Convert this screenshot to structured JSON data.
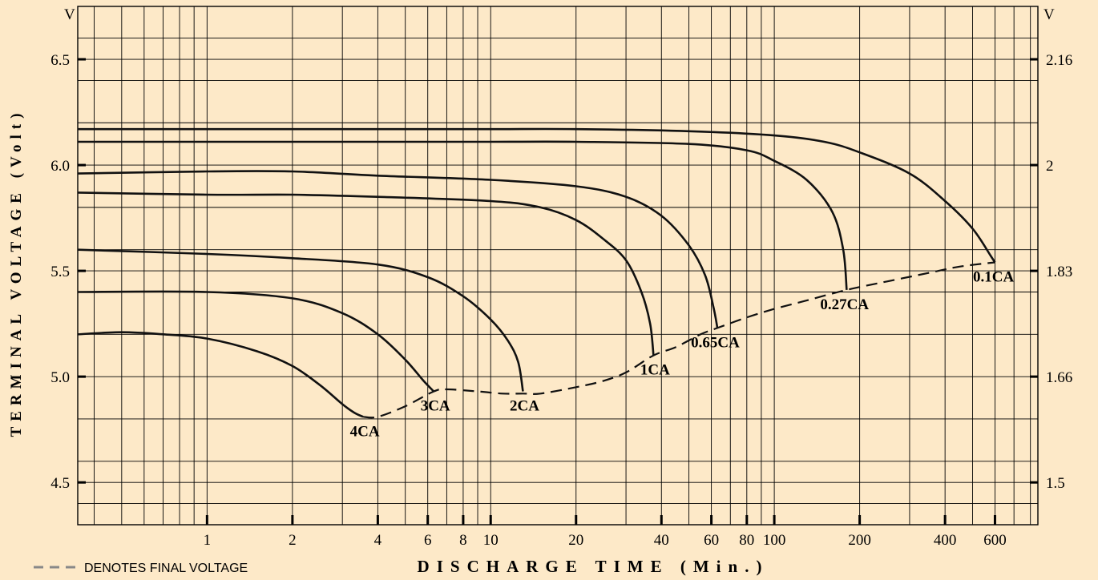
{
  "chart_data": {
    "type": "line",
    "title": "",
    "xlabel": "DISCHARGE TIME (Min.)",
    "ylabel": "TERMINAL VOLTAGE (Volt)",
    "x_scale": "log",
    "xlim": [
      0.35,
      850
    ],
    "ylim": [
      4.3,
      6.75
    ],
    "y_unit_left": "V",
    "y_unit_right": "V",
    "x_ticks": [
      1,
      2,
      4,
      6,
      8,
      10,
      20,
      40,
      60,
      80,
      100,
      200,
      400,
      600
    ],
    "x_tick_labels": [
      "1",
      "2",
      "4",
      "6",
      "8",
      "10",
      "20",
      "40",
      "60",
      "80",
      "100",
      "200",
      "400",
      "600"
    ],
    "y_ticks_left": [
      4.5,
      5.0,
      5.5,
      6.0,
      6.5
    ],
    "y_tick_labels_left": [
      "4.5",
      "5.0",
      "5.5",
      "6.0",
      "6.5"
    ],
    "y_ticks_right": [
      4.5,
      5.0,
      5.5,
      6.0,
      6.5
    ],
    "y_tick_labels_right": [
      "1.5",
      "1.66",
      "1.83",
      "2",
      "2.16"
    ],
    "grid": true,
    "series": [
      {
        "name": "4CA",
        "x": [
          0.35,
          0.5,
          0.7,
          1.0,
          1.5,
          2.0,
          2.5,
          3.0,
          3.3,
          3.55
        ],
        "y": [
          5.2,
          5.21,
          5.2,
          5.18,
          5.12,
          5.05,
          4.96,
          4.87,
          4.83,
          4.81
        ]
      },
      {
        "name": "3CA",
        "x": [
          0.35,
          1.0,
          2.0,
          3.0,
          4.0,
          5.0,
          5.8,
          6.3
        ],
        "y": [
          5.4,
          5.4,
          5.37,
          5.3,
          5.2,
          5.08,
          4.98,
          4.93
        ]
      },
      {
        "name": "2CA",
        "x": [
          0.35,
          1.0,
          2.0,
          4.0,
          6.0,
          8.0,
          10.0,
          11.5,
          12.5,
          13.0
        ],
        "y": [
          5.6,
          5.58,
          5.56,
          5.53,
          5.47,
          5.38,
          5.27,
          5.17,
          5.07,
          4.93
        ]
      },
      {
        "name": "1CA",
        "x": [
          0.35,
          1.0,
          2.0,
          4.0,
          10.0,
          15.0,
          20.0,
          25.0,
          30.0,
          34.0,
          36.5,
          37.5
        ],
        "y": [
          5.87,
          5.86,
          5.86,
          5.85,
          5.83,
          5.8,
          5.74,
          5.65,
          5.55,
          5.4,
          5.25,
          5.1
        ]
      },
      {
        "name": "0.65CA",
        "x": [
          0.35,
          1.0,
          2.0,
          4.0,
          10.0,
          20.0,
          30.0,
          40.0,
          50.0,
          57.0,
          61.0,
          63.0
        ],
        "y": [
          5.96,
          5.97,
          5.97,
          5.95,
          5.93,
          5.9,
          5.85,
          5.76,
          5.62,
          5.48,
          5.33,
          5.23
        ]
      },
      {
        "name": "0.27CA",
        "x": [
          0.35,
          1.0,
          2.0,
          4.0,
          10.0,
          20.0,
          50.0,
          80.0,
          100.0,
          130.0,
          160.0,
          175.0,
          180.0
        ],
        "y": [
          6.11,
          6.11,
          6.11,
          6.11,
          6.11,
          6.11,
          6.1,
          6.07,
          6.02,
          5.93,
          5.78,
          5.6,
          5.41
        ]
      },
      {
        "name": "0.1CA",
        "x": [
          0.35,
          1.0,
          4.0,
          10.0,
          20.0,
          50.0,
          100.0,
          150.0,
          200.0,
          300.0,
          400.0,
          500.0,
          580.0,
          600.0
        ],
        "y": [
          6.17,
          6.17,
          6.17,
          6.17,
          6.17,
          6.16,
          6.14,
          6.11,
          6.06,
          5.96,
          5.83,
          5.7,
          5.57,
          5.54
        ]
      }
    ],
    "final_voltage": {
      "x": [
        3.55,
        4.0,
        5.0,
        6.3,
        7.0,
        9.0,
        11.0,
        13.0,
        15.0,
        20.0,
        25.0,
        30.0,
        37.5,
        45.0,
        55.0,
        63.0,
        80.0,
        100.0,
        130.0,
        180.0,
        250.0,
        350.0,
        450.0,
        600.0
      ],
      "y": [
        4.81,
        4.81,
        4.86,
        4.93,
        4.94,
        4.93,
        4.92,
        4.92,
        4.92,
        4.95,
        4.98,
        5.02,
        5.1,
        5.14,
        5.2,
        5.23,
        5.28,
        5.32,
        5.36,
        5.41,
        5.45,
        5.49,
        5.52,
        5.54
      ]
    },
    "legend": {
      "text": "DENOTES FINAL VOLTAGE",
      "position": "bottom-left"
    },
    "line_color": "#111111",
    "background_color": "#fde9c8",
    "grid_color": "#000000",
    "legend_dash_color": "#888888"
  }
}
